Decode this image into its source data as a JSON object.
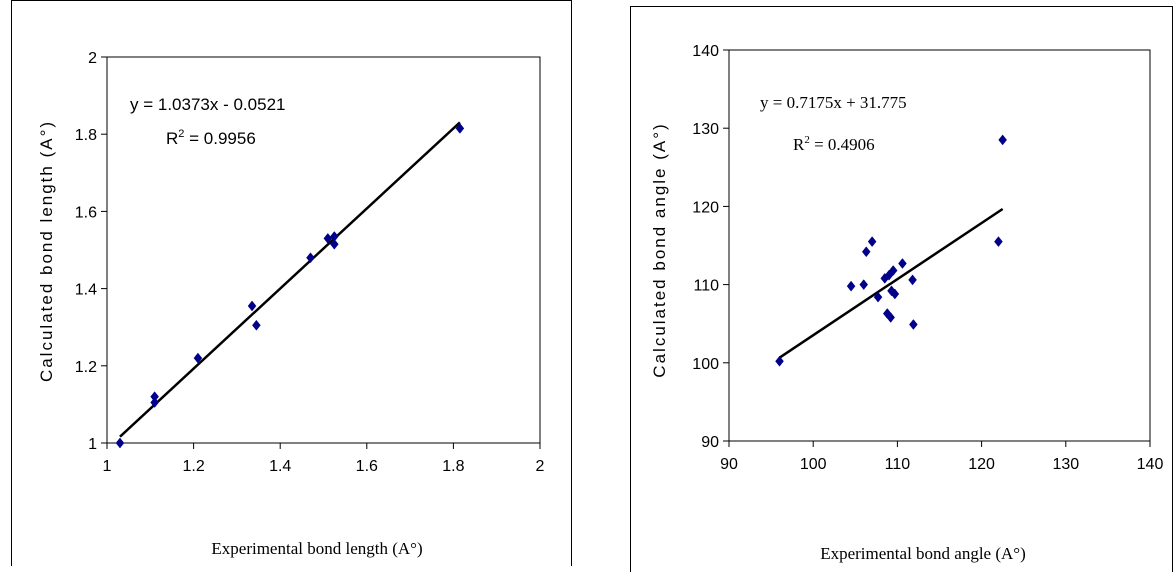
{
  "chart_data": [
    {
      "type": "scatter",
      "title": "",
      "xlabel": "Experimental bond length (A°)",
      "ylabel": "Calculated bond length (A°)",
      "xlim": [
        1,
        2
      ],
      "ylim": [
        1,
        2
      ],
      "xticks": [
        "1",
        "1.2",
        "1.4",
        "1.6",
        "1.8",
        "2"
      ],
      "yticks": [
        "1",
        "1.2",
        "1.4",
        "1.6",
        "1.8",
        "2"
      ],
      "grid": false,
      "marker": "diamond",
      "marker_color": "#00008b",
      "points": [
        {
          "x": 1.03,
          "y": 1.0
        },
        {
          "x": 1.11,
          "y": 1.12
        },
        {
          "x": 1.11,
          "y": 1.105
        },
        {
          "x": 1.21,
          "y": 1.22
        },
        {
          "x": 1.335,
          "y": 1.355
        },
        {
          "x": 1.345,
          "y": 1.305
        },
        {
          "x": 1.47,
          "y": 1.48
        },
        {
          "x": 1.51,
          "y": 1.53
        },
        {
          "x": 1.525,
          "y": 1.535
        },
        {
          "x": 1.525,
          "y": 1.515
        },
        {
          "x": 1.815,
          "y": 1.815
        }
      ],
      "trendline": {
        "slope": 1.0373,
        "intercept": -0.0521,
        "x_range": [
          1.03,
          1.815
        ]
      },
      "equation": "y = 1.0373x - 0.0521",
      "r2_prefix": "R",
      "r2_sup": "2",
      "r2_value": " = 0.9956"
    },
    {
      "type": "scatter",
      "title": "",
      "xlabel": "Experimental bond angle (A°)",
      "ylabel": "Calculated bond angle (A°)",
      "xlim": [
        90,
        140
      ],
      "ylim": [
        90,
        140
      ],
      "xticks": [
        "90",
        "100",
        "110",
        "120",
        "130",
        "140"
      ],
      "yticks": [
        "90",
        "100",
        "110",
        "120",
        "130",
        "140"
      ],
      "grid": false,
      "marker": "diamond",
      "marker_color": "#00008b",
      "points": [
        {
          "x": 96,
          "y": 100.2
        },
        {
          "x": 104.5,
          "y": 109.8
        },
        {
          "x": 106,
          "y": 110
        },
        {
          "x": 106.3,
          "y": 114.2
        },
        {
          "x": 107,
          "y": 115.5
        },
        {
          "x": 107.7,
          "y": 108.4
        },
        {
          "x": 108.5,
          "y": 110.8
        },
        {
          "x": 108.8,
          "y": 106.3
        },
        {
          "x": 109,
          "y": 111.2
        },
        {
          "x": 109.2,
          "y": 105.8
        },
        {
          "x": 109.3,
          "y": 109.2
        },
        {
          "x": 109.5,
          "y": 111.8
        },
        {
          "x": 109.7,
          "y": 108.8
        },
        {
          "x": 110.6,
          "y": 112.7
        },
        {
          "x": 111.8,
          "y": 110.6
        },
        {
          "x": 111.9,
          "y": 104.9
        },
        {
          "x": 122,
          "y": 115.5
        },
        {
          "x": 122.5,
          "y": 128.5
        }
      ],
      "trendline": {
        "slope": 0.7175,
        "intercept": 31.775,
        "x_range": [
          96,
          122.5
        ]
      },
      "equation": "y = 0.7175x + 31.775",
      "r2_prefix": "R",
      "r2_sup": "2",
      "r2_value": " = 0.4906"
    }
  ]
}
